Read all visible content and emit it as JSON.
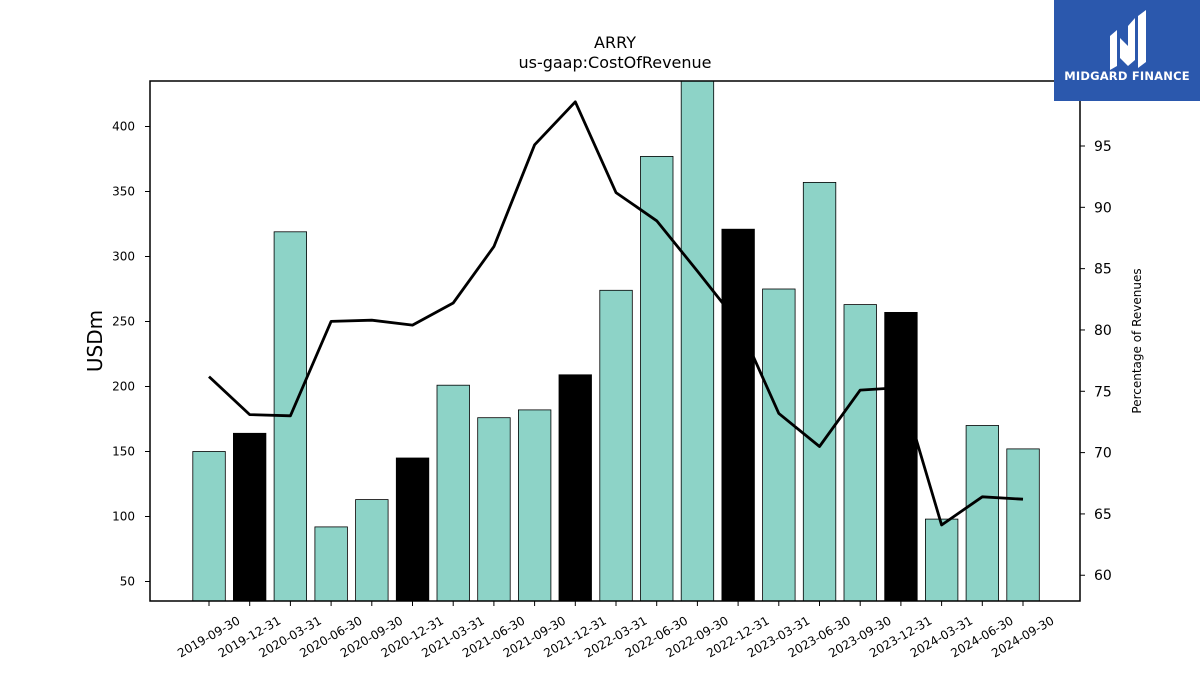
{
  "brand": {
    "name": "MIDGARD FINANCE",
    "bg_color": "#2b58ad",
    "icon": "midgard-logo-icon"
  },
  "chart_data": {
    "type": "bar",
    "title": "ARRY",
    "subtitle": "us-gaap:CostOfRevenue",
    "ylabel": "USDm",
    "y2label": "Percentage of Revenues",
    "ylim": [
      35,
      435
    ],
    "y2lim": [
      57.9,
      100.3
    ],
    "yticks": [
      50,
      100,
      150,
      200,
      250,
      300,
      350,
      400
    ],
    "y2ticks": [
      60,
      65,
      70,
      75,
      80,
      85,
      90,
      95
    ],
    "bar_color": "#8dd3c7",
    "highlight_color": "#000000",
    "categories": [
      "2019-09-30",
      "2019-12-31",
      "2020-03-31",
      "2020-06-30",
      "2020-09-30",
      "2020-12-31",
      "2021-03-31",
      "2021-06-30",
      "2021-09-30",
      "2021-12-31",
      "2022-03-31",
      "2022-06-30",
      "2022-09-30",
      "2022-12-31",
      "2023-03-31",
      "2023-06-30",
      "2023-09-30",
      "2023-12-31",
      "2024-03-31",
      "2024-06-30",
      "2024-09-30"
    ],
    "series": [
      {
        "type": "bar",
        "values": [
          150,
          164,
          319,
          92,
          113,
          145,
          201,
          176,
          182,
          209,
          274,
          377,
          437,
          321,
          275,
          357,
          263,
          257,
          98,
          170,
          152
        ],
        "highlighted": [
          false,
          true,
          false,
          false,
          false,
          true,
          false,
          false,
          false,
          true,
          false,
          false,
          false,
          true,
          false,
          false,
          false,
          true,
          false,
          false,
          false
        ]
      },
      {
        "type": "line",
        "axis": "right",
        "color": "#000000",
        "values": [
          76.2,
          73.1,
          73.0,
          80.7,
          80.8,
          80.4,
          82.2,
          86.8,
          95.1,
          98.6,
          91.2,
          88.9,
          84.8,
          80.6,
          73.2,
          70.5,
          75.1,
          75.3,
          64.1,
          66.4,
          66.2
        ]
      }
    ]
  }
}
